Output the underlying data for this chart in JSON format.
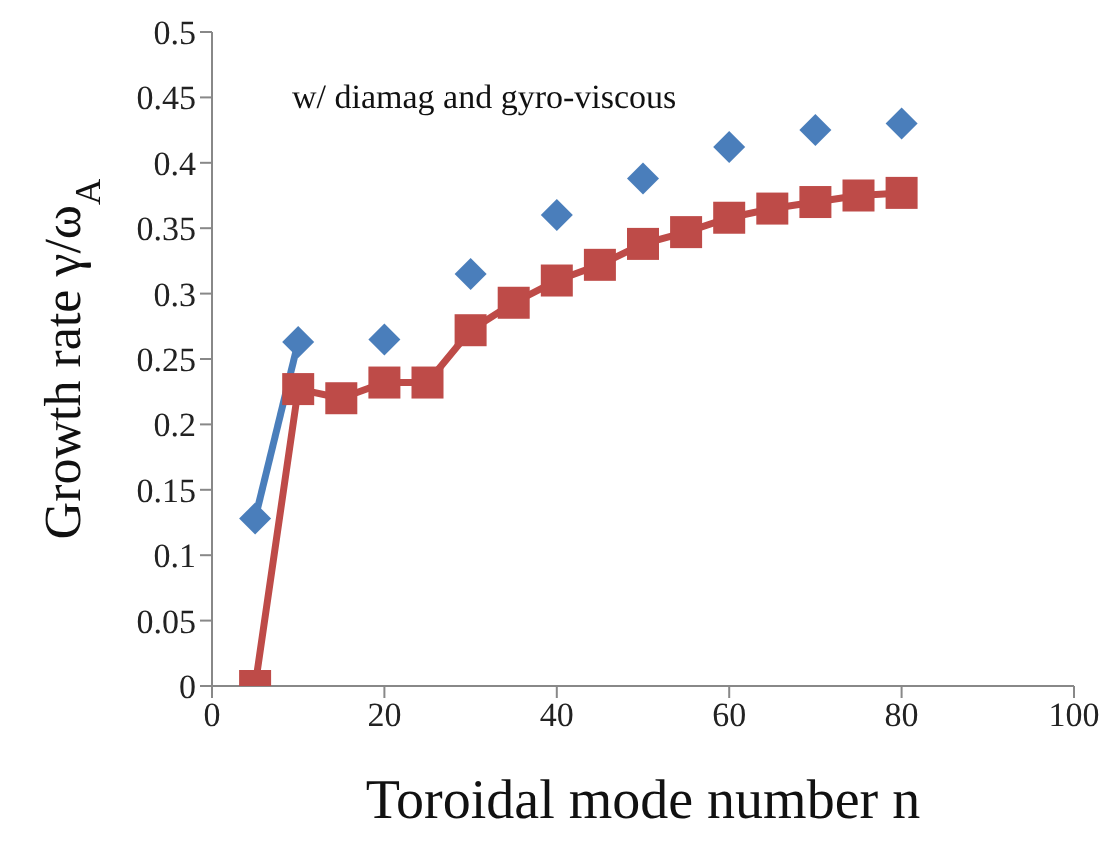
{
  "chart_data": {
    "type": "line",
    "xlabel": "Toroidal mode number n",
    "ylabel": "Growth rate γ/ω$_{A}$",
    "annotations": [
      "w/ diamag and gyro-viscous"
    ],
    "x": [
      5,
      10,
      15,
      20,
      25,
      30,
      35,
      40,
      45,
      50,
      55,
      60,
      65,
      70,
      75,
      80
    ],
    "series": [
      {
        "color": "#4a7ebb",
        "marker": "diamond",
        "values": [
          0.128,
          0.263,
          null,
          0.265,
          null,
          0.315,
          null,
          0.36,
          null,
          0.388,
          null,
          0.412,
          null,
          0.425,
          null,
          0.43
        ]
      },
      {
        "color": "#be4b48",
        "marker": "square",
        "values": [
          0,
          0.227,
          0.22,
          0.232,
          0.232,
          0.272,
          0.293,
          0.31,
          0.322,
          0.338,
          0.347,
          0.358,
          0.365,
          0.37,
          0.375,
          0.377
        ]
      }
    ],
    "xlim": [
      0,
      100
    ],
    "xticks": [
      0,
      20,
      40,
      60,
      80,
      100
    ],
    "ylim": [
      0,
      0.5
    ],
    "yticks": [
      0,
      0.05,
      0.1,
      0.15,
      0.2,
      0.25,
      0.3,
      0.35,
      0.4,
      0.45,
      0.5
    ],
    "line_style": "solid"
  }
}
